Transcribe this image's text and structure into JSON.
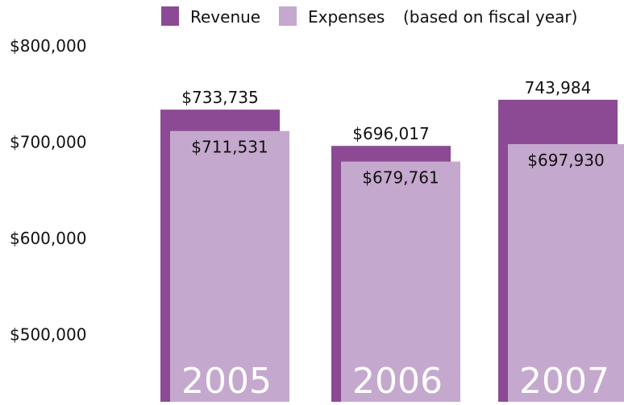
{
  "chart_data": {
    "type": "bar",
    "subtitle": "(based on fiscal year)",
    "categories": [
      "2005",
      "2006",
      "2007"
    ],
    "series": [
      {
        "name": "Revenue",
        "color": "#8b4a93",
        "values": [
          733735,
          696017,
          743984
        ],
        "value_labels": [
          "$733,735",
          "$696,017",
          "743,984"
        ]
      },
      {
        "name": "Expenses",
        "color": "#c5a8cd",
        "values": [
          711531,
          679761,
          697930
        ],
        "value_labels": [
          "$711,531",
          "$679,761",
          "$697,930"
        ]
      }
    ],
    "ylim": [
      430000,
      800000
    ],
    "yticks": [
      {
        "value": 500000,
        "label": "$500,000"
      },
      {
        "value": 600000,
        "label": "$600,000"
      },
      {
        "value": 700000,
        "label": "$700,000"
      },
      {
        "value": 800000,
        "label": "$800,000"
      }
    ],
    "grid": false
  }
}
